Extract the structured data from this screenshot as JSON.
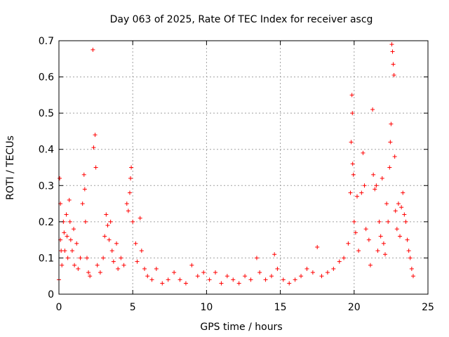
{
  "chart_data": {
    "type": "scatter",
    "title": "Day 063 of 2025, Rate Of TEC Index for receiver ascg",
    "xlabel": "GPS time / hours",
    "ylabel": "ROTI / TECUs",
    "xlim": [
      0,
      25
    ],
    "ylim": [
      0,
      0.7
    ],
    "xticks": [
      0,
      5,
      10,
      15,
      20,
      25
    ],
    "yticks": [
      0,
      0.1,
      0.2,
      0.3,
      0.4,
      0.5,
      0.6,
      0.7
    ],
    "grid": true,
    "marker": "+",
    "color": "#ff0000",
    "series": [
      {
        "name": "ROTI",
        "points": [
          [
            0.0,
            0.04
          ],
          [
            0.05,
            0.32
          ],
          [
            0.1,
            0.25
          ],
          [
            0.1,
            0.15
          ],
          [
            0.15,
            0.12
          ],
          [
            0.2,
            0.08
          ],
          [
            0.3,
            0.2
          ],
          [
            0.35,
            0.17
          ],
          [
            0.4,
            0.12
          ],
          [
            0.5,
            0.22
          ],
          [
            0.55,
            0.16
          ],
          [
            0.6,
            0.1
          ],
          [
            0.7,
            0.26
          ],
          [
            0.75,
            0.2
          ],
          [
            0.8,
            0.15
          ],
          [
            0.9,
            0.12
          ],
          [
            1.0,
            0.18
          ],
          [
            1.05,
            0.08
          ],
          [
            1.2,
            0.14
          ],
          [
            1.3,
            0.07
          ],
          [
            1.45,
            0.1
          ],
          [
            1.6,
            0.25
          ],
          [
            1.7,
            0.33
          ],
          [
            1.75,
            0.29
          ],
          [
            1.8,
            0.2
          ],
          [
            1.9,
            0.1
          ],
          [
            2.0,
            0.06
          ],
          [
            2.1,
            0.05
          ],
          [
            2.3,
            0.675
          ],
          [
            2.35,
            0.405
          ],
          [
            2.45,
            0.44
          ],
          [
            2.5,
            0.35
          ],
          [
            2.6,
            0.08
          ],
          [
            2.8,
            0.06
          ],
          [
            3.0,
            0.1
          ],
          [
            3.1,
            0.16
          ],
          [
            3.2,
            0.22
          ],
          [
            3.3,
            0.19
          ],
          [
            3.4,
            0.15
          ],
          [
            3.5,
            0.2
          ],
          [
            3.6,
            0.12
          ],
          [
            3.7,
            0.09
          ],
          [
            3.9,
            0.14
          ],
          [
            4.0,
            0.07
          ],
          [
            4.2,
            0.1
          ],
          [
            4.4,
            0.08
          ],
          [
            4.6,
            0.25
          ],
          [
            4.7,
            0.23
          ],
          [
            4.8,
            0.28
          ],
          [
            4.85,
            0.32
          ],
          [
            4.9,
            0.35
          ],
          [
            5.0,
            0.2
          ],
          [
            5.2,
            0.14
          ],
          [
            5.3,
            0.09
          ],
          [
            5.5,
            0.21
          ],
          [
            5.6,
            0.12
          ],
          [
            5.8,
            0.07
          ],
          [
            6.0,
            0.05
          ],
          [
            6.3,
            0.04
          ],
          [
            6.6,
            0.07
          ],
          [
            7.0,
            0.03
          ],
          [
            7.4,
            0.04
          ],
          [
            7.8,
            0.06
          ],
          [
            8.2,
            0.04
          ],
          [
            8.6,
            0.03
          ],
          [
            9.0,
            0.08
          ],
          [
            9.4,
            0.05
          ],
          [
            9.8,
            0.06
          ],
          [
            10.2,
            0.04
          ],
          [
            10.6,
            0.06
          ],
          [
            11.0,
            0.03
          ],
          [
            11.4,
            0.05
          ],
          [
            11.8,
            0.04
          ],
          [
            12.2,
            0.03
          ],
          [
            12.6,
            0.05
          ],
          [
            13.0,
            0.04
          ],
          [
            13.4,
            0.1
          ],
          [
            13.6,
            0.06
          ],
          [
            14.0,
            0.04
          ],
          [
            14.4,
            0.05
          ],
          [
            14.6,
            0.11
          ],
          [
            14.8,
            0.07
          ],
          [
            15.2,
            0.04
          ],
          [
            15.6,
            0.03
          ],
          [
            16.0,
            0.04
          ],
          [
            16.4,
            0.05
          ],
          [
            16.8,
            0.07
          ],
          [
            17.2,
            0.06
          ],
          [
            17.5,
            0.13
          ],
          [
            17.8,
            0.05
          ],
          [
            18.2,
            0.06
          ],
          [
            18.6,
            0.07
          ],
          [
            19.0,
            0.09
          ],
          [
            19.3,
            0.1
          ],
          [
            19.6,
            0.14
          ],
          [
            19.75,
            0.28
          ],
          [
            19.8,
            0.42
          ],
          [
            19.85,
            0.55
          ],
          [
            19.88,
            0.5
          ],
          [
            19.9,
            0.36
          ],
          [
            19.95,
            0.33
          ],
          [
            20.0,
            0.2
          ],
          [
            20.1,
            0.17
          ],
          [
            20.2,
            0.27
          ],
          [
            20.3,
            0.12
          ],
          [
            20.5,
            0.28
          ],
          [
            20.6,
            0.39
          ],
          [
            20.7,
            0.3
          ],
          [
            20.8,
            0.18
          ],
          [
            21.0,
            0.15
          ],
          [
            21.1,
            0.08
          ],
          [
            21.25,
            0.51
          ],
          [
            21.3,
            0.33
          ],
          [
            21.4,
            0.29
          ],
          [
            21.5,
            0.3
          ],
          [
            21.6,
            0.12
          ],
          [
            21.7,
            0.2
          ],
          [
            21.8,
            0.16
          ],
          [
            21.9,
            0.32
          ],
          [
            22.0,
            0.14
          ],
          [
            22.1,
            0.11
          ],
          [
            22.2,
            0.25
          ],
          [
            22.3,
            0.2
          ],
          [
            22.4,
            0.35
          ],
          [
            22.45,
            0.42
          ],
          [
            22.5,
            0.47
          ],
          [
            22.55,
            0.69
          ],
          [
            22.6,
            0.67
          ],
          [
            22.65,
            0.635
          ],
          [
            22.7,
            0.605
          ],
          [
            22.75,
            0.38
          ],
          [
            22.8,
            0.23
          ],
          [
            22.9,
            0.18
          ],
          [
            23.0,
            0.25
          ],
          [
            23.1,
            0.16
          ],
          [
            23.2,
            0.24
          ],
          [
            23.3,
            0.28
          ],
          [
            23.4,
            0.22
          ],
          [
            23.5,
            0.2
          ],
          [
            23.6,
            0.15
          ],
          [
            23.7,
            0.12
          ],
          [
            23.8,
            0.1
          ],
          [
            23.9,
            0.07
          ],
          [
            24.0,
            0.05
          ]
        ]
      }
    ]
  }
}
